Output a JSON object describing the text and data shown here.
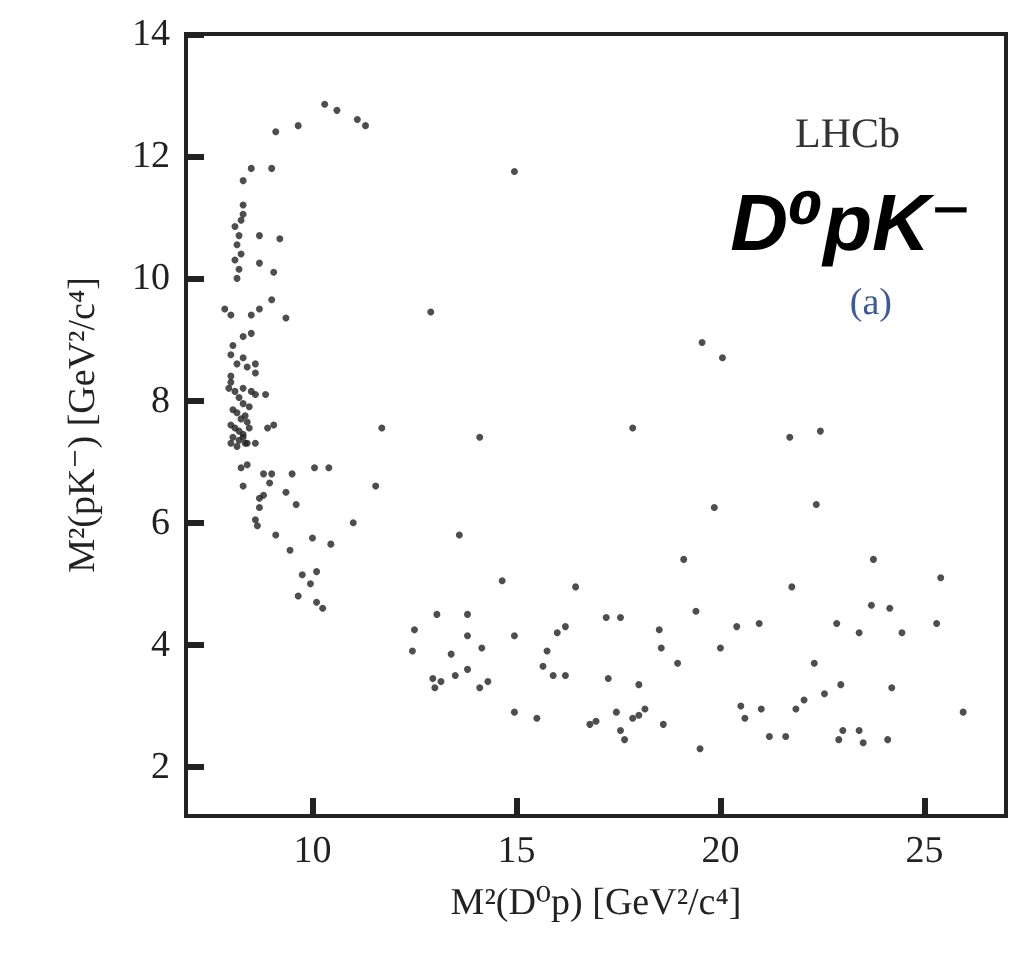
{
  "chart_data": {
    "type": "scatter",
    "xlabel": "M²(D⁰p) [GeV²/c⁴]",
    "ylabel": "M²(pK⁻) [GeV²/c⁴]",
    "annotations": [
      "LHCb",
      "D⁰pK⁻",
      "(a)"
    ],
    "xlim": [
      6.9,
      27
    ],
    "ylim": [
      1.2,
      14
    ],
    "xticks": [
      10,
      15,
      20,
      25
    ],
    "yticks": [
      2,
      4,
      6,
      8,
      10,
      12,
      14
    ],
    "grid": false,
    "marker": "circle",
    "series": [
      {
        "color": "#222222",
        "x": [
          10.3,
          10.6,
          11.1,
          11.3,
          9.65,
          9.1,
          14.95,
          8.5,
          9.0,
          8.3,
          8.3,
          8.3,
          8.25,
          8.1,
          8.2,
          8.15,
          8.25,
          8.1,
          8.2,
          8.15,
          8.7,
          9.2,
          8.7,
          9.05,
          12.9,
          9.0,
          8.7,
          9.35,
          8.5,
          7.85,
          8.0,
          8.5,
          8.3,
          8.05,
          8.0,
          8.3,
          8.15,
          8.6,
          8.4,
          8.0,
          8.6,
          7.95,
          8.3,
          8.5,
          8.85,
          8.0,
          8.1,
          8.2,
          8.3,
          8.45,
          8.05,
          8.15,
          8.25,
          8.35,
          8.4,
          8.0,
          8.1,
          8.2,
          8.3,
          8.45,
          8.05,
          8.2,
          8.35,
          8.0,
          8.15,
          8.3,
          8.4,
          8.6,
          8.9,
          9.05,
          8.6,
          11.7,
          14.1,
          8.25,
          8.4,
          8.3,
          8.8,
          9.0,
          8.95,
          9.5,
          10.05,
          10.4,
          11.55,
          9.35,
          9.6,
          8.8,
          8.7,
          8.7,
          8.6,
          8.65,
          11.0,
          9.1,
          10.0,
          10.45,
          9.45,
          13.6,
          9.75,
          10.1,
          9.95,
          9.65,
          10.1,
          10.25,
          14.65,
          16.45,
          13.05,
          13.8,
          12.5,
          13.8,
          14.95,
          16.2,
          16.0,
          12.45,
          13.4,
          14.15,
          15.75,
          15.65,
          13.8,
          15.9,
          16.2,
          13.5,
          12.95,
          13.15,
          14.3,
          13.0,
          14.1,
          14.95,
          15.5,
          16.8,
          16.95,
          19.55,
          20.05,
          17.85,
          21.7,
          22.45,
          19.85,
          22.35,
          19.1,
          23.75,
          25.4,
          21.75,
          17.2,
          17.55,
          19.4,
          23.7,
          24.15,
          18.5,
          20.4,
          20.95,
          22.85,
          23.4,
          24.45,
          25.3,
          18.55,
          20.0,
          18.95,
          22.3,
          17.25,
          18.0,
          22.95,
          24.2,
          20.5,
          21.0,
          18.15,
          17.45,
          18.0,
          21.85,
          22.05,
          22.55,
          20.6,
          17.85,
          18.6,
          25.95,
          17.55,
          17.65,
          21.2,
          21.6,
          23.0,
          23.4,
          22.9,
          23.5,
          24.1,
          19.5
        ],
        "values": [
          12.85,
          12.75,
          12.6,
          12.5,
          12.5,
          12.4,
          11.75,
          11.8,
          11.8,
          11.6,
          11.2,
          11.05,
          10.95,
          10.85,
          10.7,
          10.55,
          10.4,
          10.3,
          10.15,
          10.0,
          10.7,
          10.65,
          10.25,
          10.1,
          9.45,
          9.65,
          9.5,
          9.35,
          9.4,
          9.5,
          9.4,
          9.1,
          9.05,
          8.9,
          8.75,
          8.7,
          8.6,
          8.6,
          8.55,
          8.4,
          8.45,
          8.2,
          8.2,
          8.15,
          8.1,
          8.3,
          8.15,
          8.05,
          7.95,
          7.9,
          7.85,
          7.8,
          7.7,
          7.75,
          7.65,
          7.6,
          7.55,
          7.5,
          7.45,
          7.55,
          7.4,
          7.35,
          7.3,
          7.3,
          7.25,
          7.4,
          7.3,
          8.1,
          7.55,
          7.6,
          7.3,
          7.55,
          7.4,
          6.9,
          6.95,
          6.6,
          6.8,
          6.8,
          6.65,
          6.8,
          6.9,
          6.9,
          6.6,
          6.5,
          6.3,
          6.45,
          6.4,
          6.25,
          6.05,
          5.95,
          6.0,
          5.8,
          5.75,
          5.65,
          5.55,
          5.8,
          5.15,
          5.2,
          5.0,
          4.8,
          4.7,
          4.6,
          5.05,
          4.95,
          4.5,
          4.5,
          4.25,
          4.15,
          4.15,
          4.3,
          4.2,
          3.9,
          3.85,
          3.95,
          3.9,
          3.65,
          3.6,
          3.5,
          3.5,
          3.5,
          3.45,
          3.4,
          3.4,
          3.3,
          3.3,
          2.9,
          2.8,
          2.7,
          2.75,
          8.95,
          8.7,
          7.55,
          7.4,
          7.5,
          6.25,
          6.3,
          5.4,
          5.4,
          5.1,
          4.95,
          4.45,
          4.45,
          4.55,
          4.65,
          4.6,
          4.25,
          4.3,
          4.35,
          4.35,
          4.2,
          4.2,
          4.35,
          3.95,
          3.95,
          3.7,
          3.7,
          3.45,
          3.35,
          3.35,
          3.3,
          3.0,
          2.95,
          2.95,
          2.9,
          2.85,
          2.95,
          3.1,
          3.2,
          2.8,
          2.8,
          2.7,
          2.9,
          2.6,
          2.45,
          2.5,
          2.5,
          2.6,
          2.6,
          2.45,
          2.4,
          2.45,
          2.3
        ]
      }
    ]
  }
}
